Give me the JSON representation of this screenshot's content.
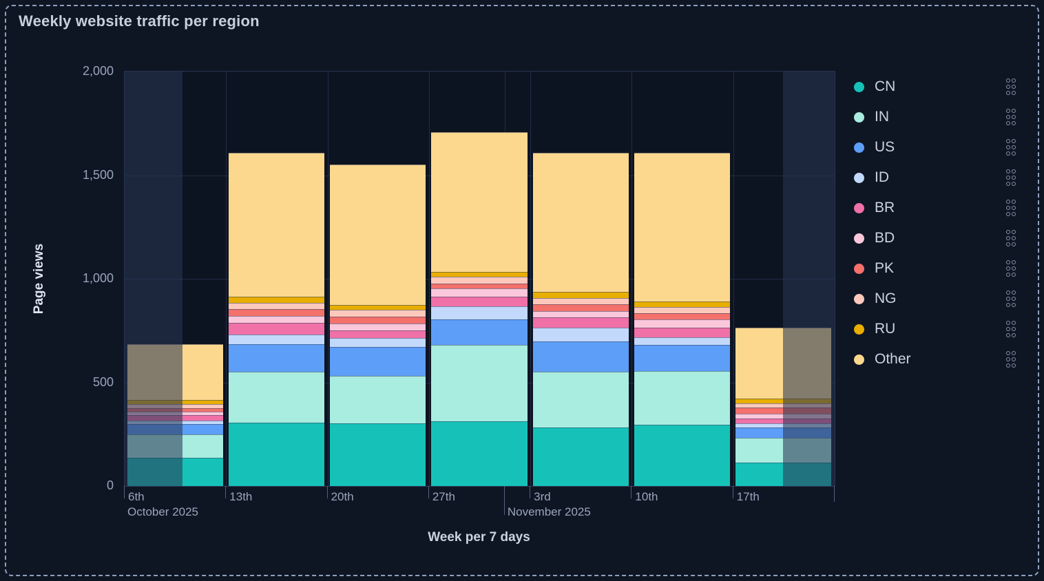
{
  "panel": {
    "title": "Weekly website traffic per region"
  },
  "chart_data": {
    "type": "bar",
    "stacked": true,
    "title": "Weekly website traffic per region",
    "xlabel": "Week per 7 days",
    "ylabel": "Page views",
    "ylim": [
      0,
      2000
    ],
    "grid": true,
    "legend_position": "right",
    "y_ticks": [
      {
        "value": 0,
        "label": "0"
      },
      {
        "value": 500,
        "label": "500"
      },
      {
        "value": 1000,
        "label": "1,000"
      },
      {
        "value": 1500,
        "label": "1,500"
      },
      {
        "value": 2000,
        "label": "2,000"
      }
    ],
    "categories": [
      "6th",
      "13th",
      "20th",
      "27th",
      "3rd",
      "10th",
      "17th"
    ],
    "month_labels": [
      {
        "text": "October 2025",
        "tick_pos": 0,
        "long_tick": false
      },
      {
        "text": "November 2025",
        "tick_pos": 3.747,
        "long_tick": true
      }
    ],
    "series": [
      {
        "name": "CN",
        "color": "#16c2b8",
        "values": [
          135,
          305,
          302,
          312,
          282,
          296,
          113
        ]
      },
      {
        "name": "IN",
        "color": "#a9ece0",
        "values": [
          115,
          245,
          229,
          369,
          268,
          260,
          118
        ]
      },
      {
        "name": "US",
        "color": "#5d9ef8",
        "values": [
          50,
          136,
          139,
          122,
          147,
          125,
          51
        ]
      },
      {
        "name": "ID",
        "color": "#c3d9fc",
        "values": [
          17,
          46,
          44,
          63,
          66,
          36,
          21
        ]
      },
      {
        "name": "BR",
        "color": "#f070a8",
        "values": [
          26,
          54,
          37,
          48,
          52,
          47,
          22
        ]
      },
      {
        "name": "BD",
        "color": "#fbc7db",
        "values": [
          17,
          36,
          33,
          39,
          30,
          39,
          25
        ]
      },
      {
        "name": "PK",
        "color": "#f4716c",
        "values": [
          17,
          32,
          33,
          24,
          31,
          30,
          28
        ]
      },
      {
        "name": "NG",
        "color": "#fec9bc",
        "values": [
          17,
          31,
          33,
          33,
          31,
          31,
          22
        ]
      },
      {
        "name": "RU",
        "color": "#e8ae01",
        "values": [
          21,
          30,
          24,
          22,
          30,
          28,
          22
        ]
      },
      {
        "name": "Other",
        "color": "#fbd88d",
        "values": [
          270,
          693,
          677,
          676,
          671,
          716,
          343
        ]
      }
    ],
    "bar_totals": [
      685,
      1608,
      1551,
      1708,
      1608,
      1608,
      765
    ],
    "out_of_range_shading": {
      "left_fraction_end": 0.0815,
      "right_fraction_start": 0.9273
    }
  },
  "legend": {
    "menu_icon": "six-dot-kebab-icon"
  },
  "ui_colors": {
    "background": "#0e1624",
    "panel_dashed_border": "#8fa0bd",
    "title_text": "#c8cfdc",
    "axis_text": "#9aa5bb",
    "axis_title_text": "#dfe5ef",
    "gridline": "#212c46",
    "out_of_range_overlay": "rgba(41,55,85,0.57)"
  }
}
